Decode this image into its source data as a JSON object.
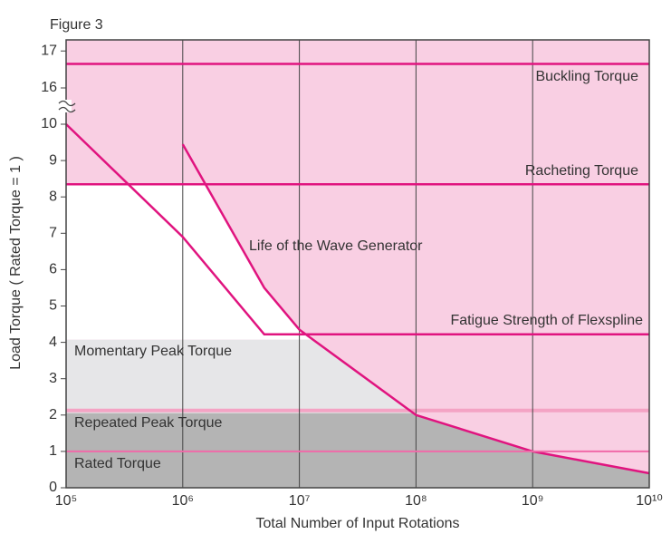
{
  "chart_data": {
    "type": "line",
    "figure_label": "Figure 3",
    "xlabel": "Total Number of Input Rotations",
    "ylabel": "Load Torque ( Rated Torque = 1 )",
    "xscale": "log",
    "xlim": [
      100000,
      10000000000
    ],
    "xticks": [
      {
        "value": 100000,
        "label": "10⁵"
      },
      {
        "value": 1000000,
        "label": "10⁶"
      },
      {
        "value": 10000000,
        "label": "10⁷"
      },
      {
        "value": 100000000,
        "label": "10⁸"
      },
      {
        "value": 1000000000,
        "label": "10⁹"
      },
      {
        "value": 10000000000,
        "label": "10¹⁰"
      }
    ],
    "ylim": [
      0,
      17.3
    ],
    "y_break": [
      10,
      16
    ],
    "yticks": [
      0,
      1,
      2,
      3,
      4,
      5,
      6,
      7,
      8,
      9,
      10,
      16,
      17
    ],
    "grid": "x",
    "background_color": "#f9cfe3",
    "series": [
      {
        "name": "Buckling Torque",
        "kind": "line",
        "color": "#e0147f",
        "x": [
          100000,
          10000000000
        ],
        "values": [
          16.65,
          16.65
        ]
      },
      {
        "name": "Racheting Torque",
        "kind": "line",
        "color": "#e0147f",
        "x": [
          100000,
          10000000000
        ],
        "values": [
          8.35,
          8.35
        ]
      },
      {
        "name": "Life of the Wave Generator",
        "kind": "line",
        "color": "#e0147f",
        "x": [
          1000000,
          5000000,
          10000000,
          100000000,
          1000000000,
          10000000000
        ],
        "values": [
          9.45,
          5.5,
          4.35,
          2.0,
          1.0,
          0.4
        ]
      },
      {
        "name": "Fatigue Strength of Flexspline",
        "kind": "line",
        "color": "#e0147f",
        "x": [
          100000,
          1000000,
          5000000,
          10000000000
        ],
        "values": [
          10,
          6.9,
          4.22,
          4.22
        ]
      },
      {
        "name": "Momentary Peak Torque",
        "kind": "band",
        "color": "#e6e6e8",
        "values": [
          4.07
        ]
      },
      {
        "name": "Repeated Peak Torque",
        "kind": "band",
        "color": "#b4b4b4",
        "edge_color": "#f4a3c4",
        "values": [
          2.05
        ]
      },
      {
        "name": "Rated Torque",
        "kind": "level",
        "color": "#f06aa8",
        "values": [
          1.0
        ]
      }
    ]
  }
}
